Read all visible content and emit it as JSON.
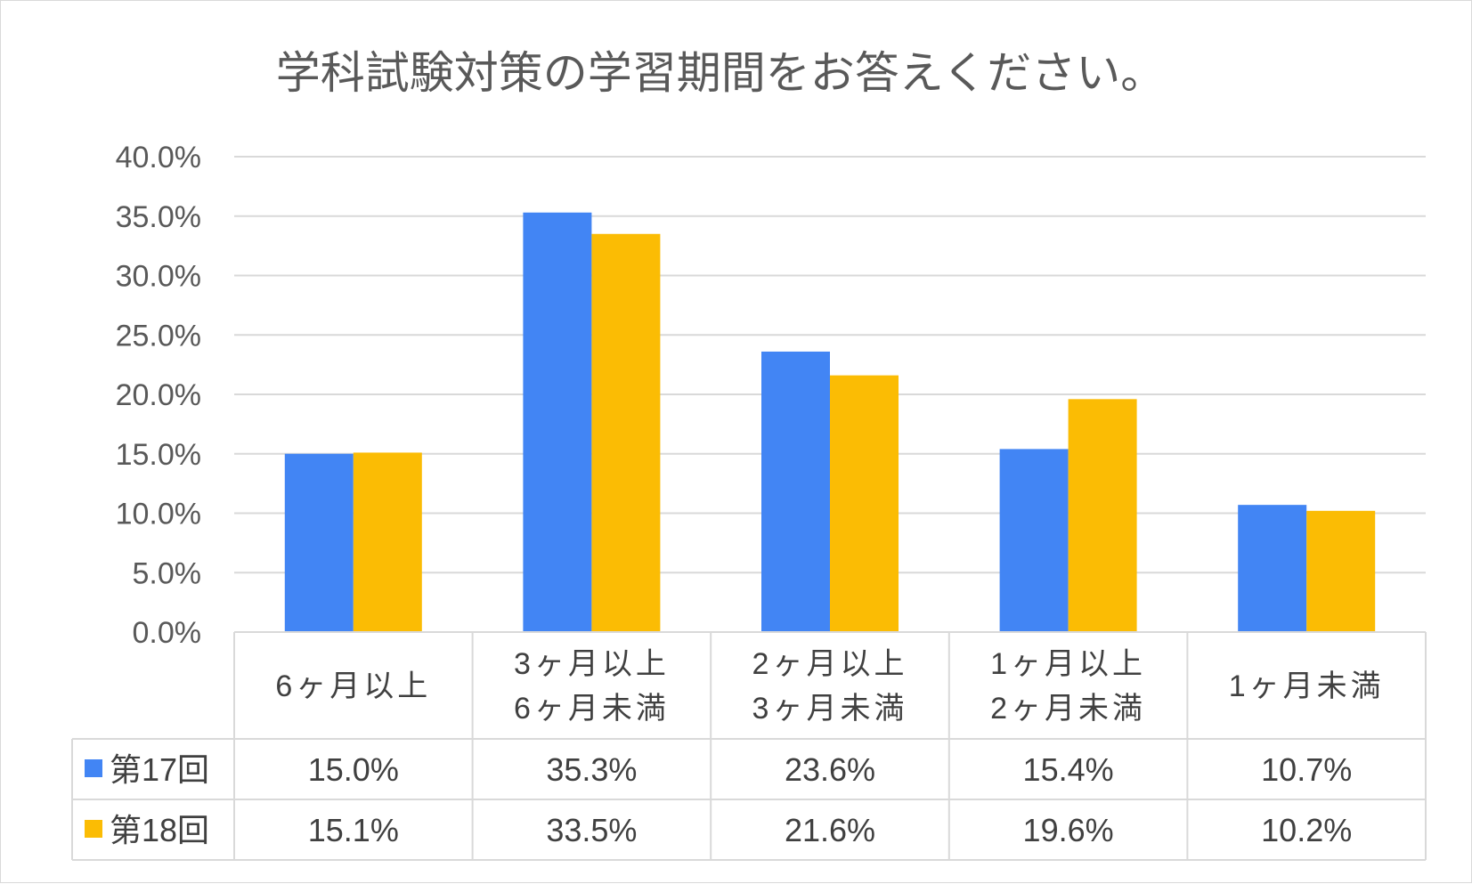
{
  "chart_data": {
    "type": "bar",
    "title": "学科試験対策の学習期間をお答えください。",
    "categories": [
      [
        "6ヶ月以上"
      ],
      [
        "3ヶ月以上",
        "6ヶ月未満"
      ],
      [
        "2ヶ月以上",
        "3ヶ月未満"
      ],
      [
        "1ヶ月以上",
        "2ヶ月未満"
      ],
      [
        "1ヶ月未満"
      ]
    ],
    "series": [
      {
        "name": "第17回",
        "color": "#4285f4",
        "values": [
          15.0,
          35.3,
          23.6,
          15.4,
          10.7
        ],
        "labels": [
          "15.0%",
          "35.3%",
          "23.6%",
          "15.4%",
          "10.7%"
        ]
      },
      {
        "name": "第18回",
        "color": "#fbbc04",
        "values": [
          15.1,
          33.5,
          21.6,
          19.6,
          10.2
        ],
        "labels": [
          "15.1%",
          "33.5%",
          "21.6%",
          "19.6%",
          "10.2%"
        ]
      }
    ],
    "ylim": [
      0,
      40
    ],
    "yticks": [
      "0.0%",
      "5.0%",
      "10.0%",
      "15.0%",
      "20.0%",
      "25.0%",
      "30.0%",
      "35.0%",
      "40.0%"
    ],
    "ytick_step": 5,
    "grid": true,
    "legend": "data-table"
  }
}
